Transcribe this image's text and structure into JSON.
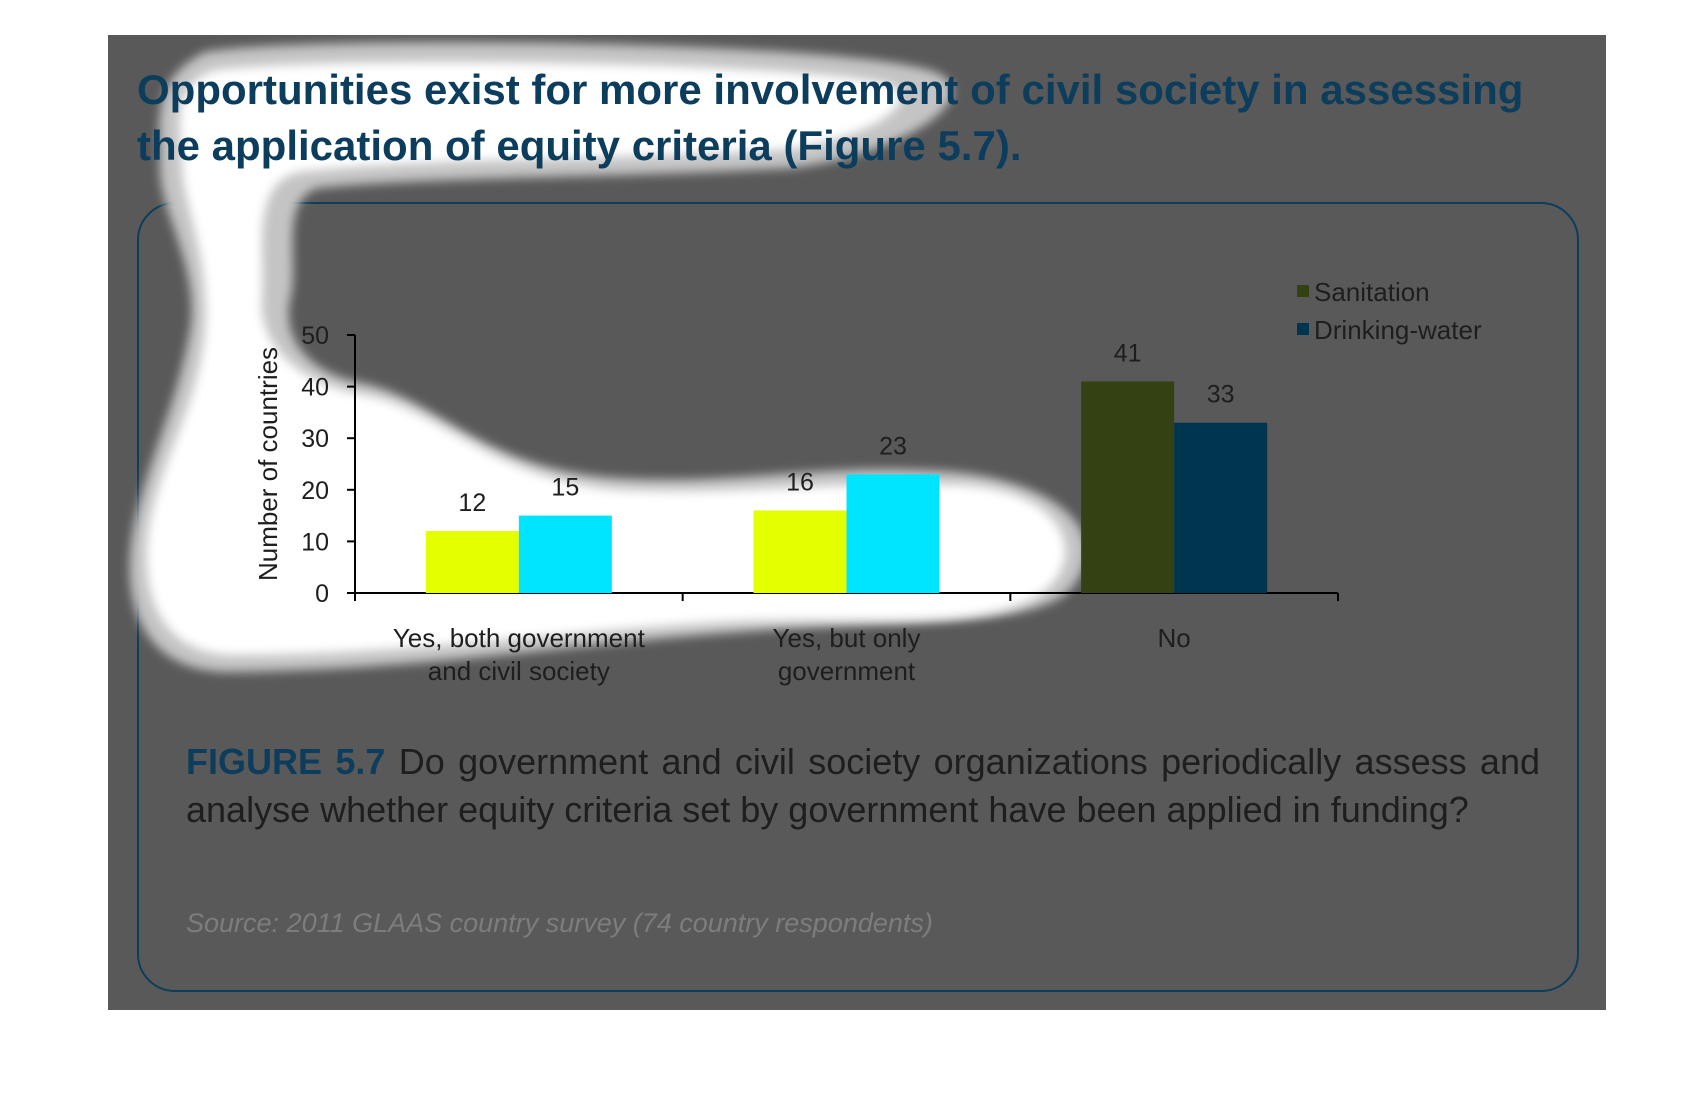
{
  "headline": "Opportunities exist for more involvement of civil society in assessing the application of equity criteria (Figure 5.7).",
  "caption": {
    "label": "FIGURE 5.7",
    "text": " Do government and civil society organizations periodically assess and analyse whether equity criteria set by government have been applied in funding?"
  },
  "source": "Source: 2011 GLAAS country survey (74 country respondents)",
  "colors": {
    "slide_bg": "#595959",
    "title_dark": "#0d3d5c",
    "highlight_cyan": "#00e5ff",
    "highlight_lime": "#e3ff00",
    "sanitation_dim": "#344112",
    "drinking_water_dim": "#00354f"
  },
  "chart_data": {
    "type": "bar",
    "title": "",
    "xlabel": "",
    "ylabel": "Number of countries",
    "categories": [
      "Yes, both government and civil society",
      "Yes, but only government",
      "No"
    ],
    "category_lines": [
      [
        "Yes, both government",
        "and civil society"
      ],
      [
        "Yes, but only",
        "government"
      ],
      [
        "No"
      ]
    ],
    "series": [
      {
        "name": "Sanitation",
        "values": [
          12,
          16,
          41
        ]
      },
      {
        "name": "Drinking-water",
        "values": [
          15,
          23,
          33
        ]
      }
    ],
    "ylim": [
      0,
      50
    ],
    "yticks": [
      0,
      10,
      20,
      30,
      40,
      50
    ],
    "grid": false,
    "legend_position": "top-right",
    "data_labels": true
  }
}
